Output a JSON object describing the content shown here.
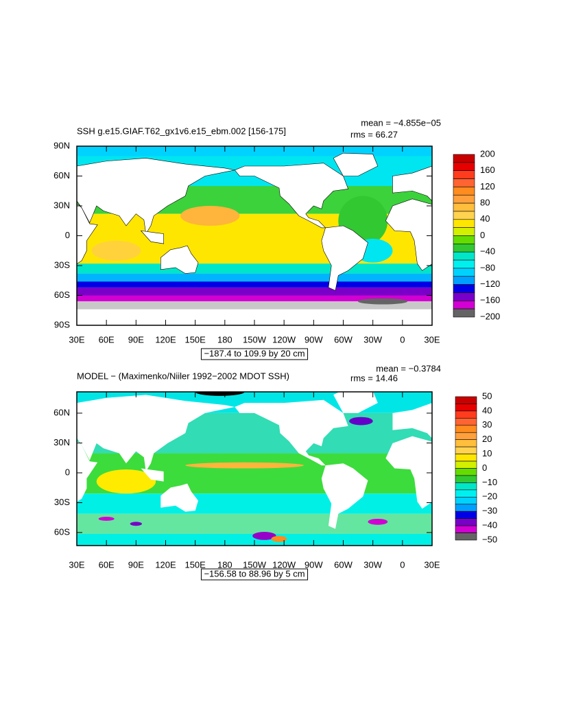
{
  "panels": [
    {
      "title": "SSH g.e15.GIAF.T62_gx1v6.e15_ebm.002 [156-175]",
      "mean": "mean = −4.855e−05",
      "rms": "rms = 66.27",
      "lat_labels": [
        "90N",
        "60N",
        "30N",
        "0",
        "30S",
        "60S",
        "90S"
      ],
      "lon_labels": [
        "30E",
        "60E",
        "90E",
        "120E",
        "150E",
        "180",
        "150W",
        "120W",
        "90W",
        "60W",
        "30W",
        "0",
        "30E"
      ],
      "range": "−187.4 to 109.9 by 20 cm",
      "colorbar": [
        "200",
        "160",
        "120",
        "80",
        "40",
        "0",
        "−40",
        "−80",
        "−120",
        "−160",
        "−200"
      ]
    },
    {
      "title": "MODEL − (Maximenko/Niiler 1992−2002 MDOT SSH)",
      "mean": "mean = −0.3784",
      "rms": "rms = 14.46",
      "lat_labels": [
        "60N",
        "30N",
        "0",
        "30S",
        "60S"
      ],
      "lon_labels": [
        "30E",
        "60E",
        "90E",
        "120E",
        "150E",
        "180",
        "150W",
        "120W",
        "90W",
        "60W",
        "30W",
        "0",
        "30E"
      ],
      "range": "−156.58 to 88.96 by 5 cm",
      "colorbar": [
        "50",
        "40",
        "30",
        "20",
        "10",
        "0",
        "−10",
        "−20",
        "−30",
        "−40",
        "−50"
      ]
    }
  ]
}
